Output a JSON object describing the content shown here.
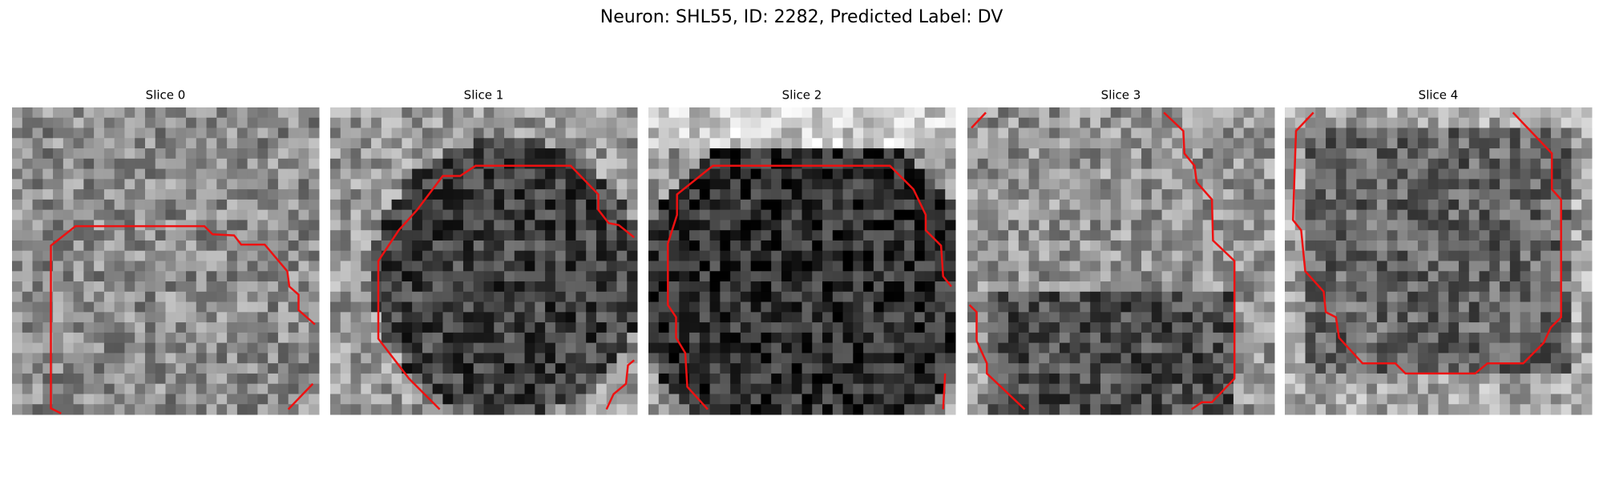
{
  "title": "Neuron: SHL55, ID: 2282, Predicted Label: DV",
  "panels": [
    {
      "title": "Slice 0"
    },
    {
      "title": "Slice 1"
    },
    {
      "title": "Slice 2"
    },
    {
      "title": "Slice 3"
    },
    {
      "title": "Slice 4"
    }
  ]
}
